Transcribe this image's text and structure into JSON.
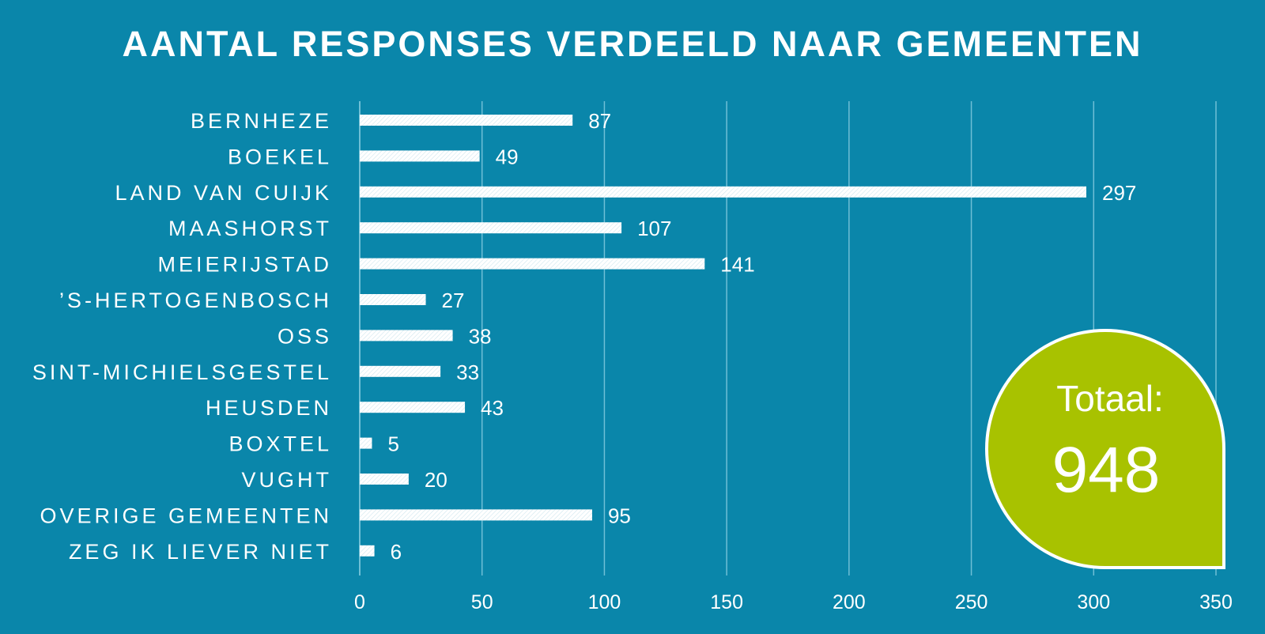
{
  "chart_data": {
    "type": "bar",
    "orientation": "horizontal",
    "title": "AANTAL RESPONSES VERDEELD NAAR GEMEENTEN",
    "categories": [
      "BERNHEZE",
      "BOEKEL",
      "LAND VAN CUIJK",
      "MAASHORST",
      "MEIERIJSTAD",
      "’S-HERTOGENBOSCH",
      "OSS",
      "SINT-MICHIELSGESTEL",
      "HEUSDEN",
      "BOXTEL",
      "VUGHT",
      "OVERIGE GEMEENTEN",
      "ZEG IK LIEVER NIET"
    ],
    "values": [
      87,
      49,
      297,
      107,
      141,
      27,
      38,
      33,
      43,
      5,
      20,
      95,
      6
    ],
    "xlim": [
      0,
      350
    ],
    "xticks": [
      0,
      50,
      100,
      150,
      200,
      250,
      300,
      350
    ],
    "grid": "vertical",
    "data_labels": true
  },
  "total_badge": {
    "label": "Totaal:",
    "value": "948"
  },
  "colors": {
    "background": "#0a86aa",
    "bar": "#ffffff",
    "badge": "#a8c200",
    "gridline": "#6fbfd6"
  }
}
